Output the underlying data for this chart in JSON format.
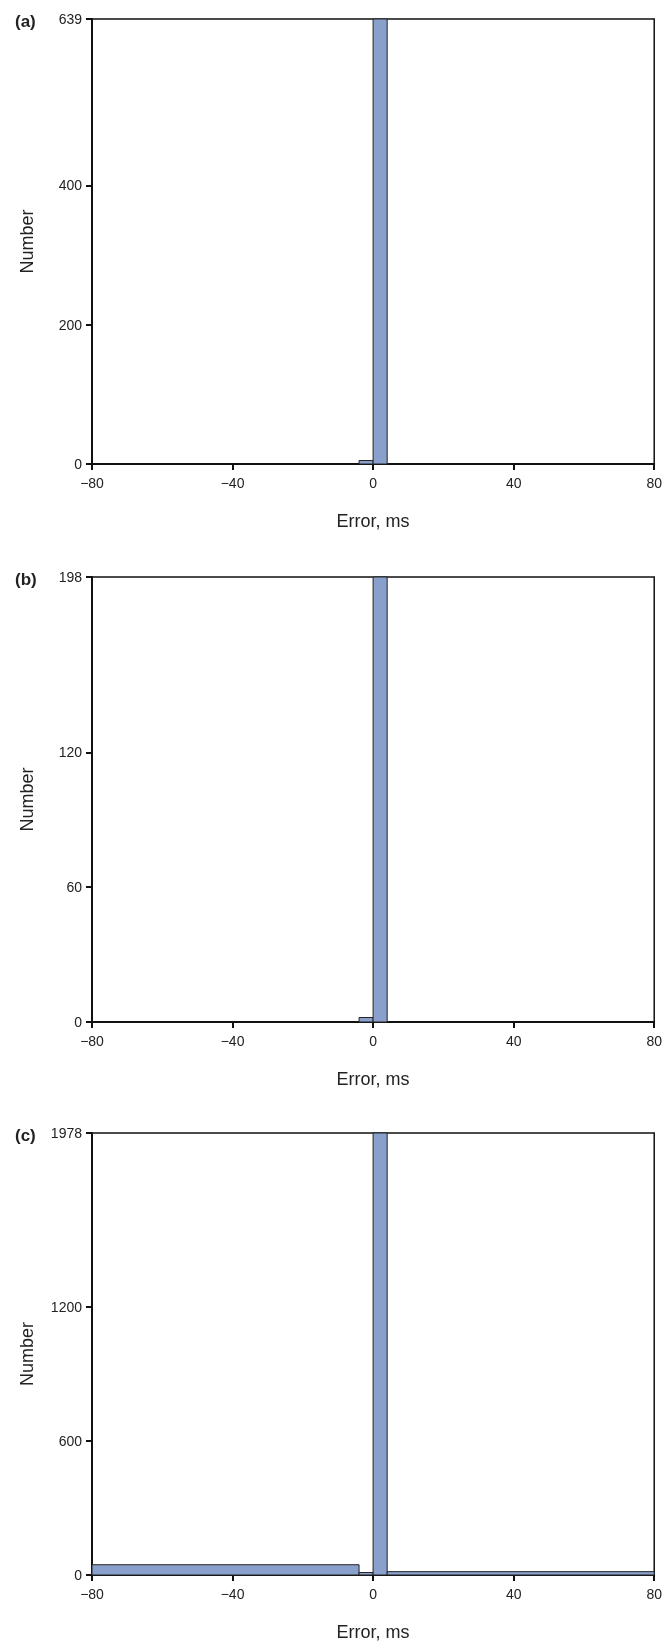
{
  "chart_data": [
    {
      "type": "histogram",
      "title": "(a)",
      "xlabel": "Error, ms",
      "ylabel": "Number",
      "bins": [
        -4,
        0,
        4
      ],
      "values": [
        5,
        639
      ],
      "color": "#8aa0cc",
      "xlim": [
        -80,
        80
      ],
      "xticks": [
        -80,
        -40,
        0,
        40,
        80
      ],
      "ylim": [
        0,
        639
      ],
      "yticks": [
        0,
        200,
        400,
        639
      ],
      "grid": false
    },
    {
      "type": "histogram",
      "title": "(b)",
      "xlabel": "Error, ms",
      "ylabel": "Number",
      "bins": [
        -4,
        0,
        4
      ],
      "values": [
        2,
        198
      ],
      "color": "#8aa0cc",
      "xlim": [
        -80,
        80
      ],
      "xticks": [
        -80,
        -40,
        0,
        40,
        80
      ],
      "ylim": [
        0,
        198
      ],
      "yticks": [
        0,
        60,
        120,
        198
      ],
      "grid": false
    },
    {
      "type": "histogram",
      "title": "(c)",
      "xlabel": "Error, ms",
      "ylabel": "Number",
      "bins": [
        -80,
        -4,
        0,
        4,
        80
      ],
      "values": [
        46,
        11,
        1978,
        15
      ],
      "color": "#8aa0cc",
      "xlim": [
        -80,
        80
      ],
      "xticks": [
        -80,
        -40,
        0,
        40,
        80
      ],
      "ylim": [
        0,
        1978
      ],
      "yticks": [
        0,
        600,
        1200,
        1978
      ],
      "grid": false
    }
  ]
}
